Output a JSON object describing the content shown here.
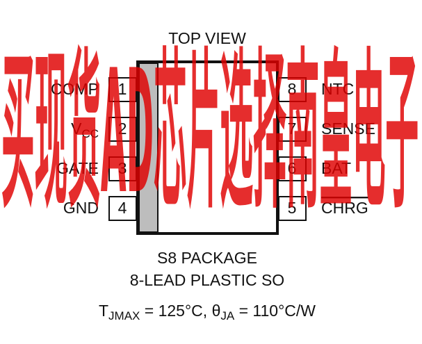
{
  "title": "TOP VIEW",
  "pins_left": [
    {
      "number": "1",
      "label": "COMP"
    },
    {
      "number": "2",
      "label": {
        "main": "V",
        "sub": "CC"
      }
    },
    {
      "number": "3",
      "label": "GATE"
    },
    {
      "number": "4",
      "label": "GND"
    }
  ],
  "pins_right": [
    {
      "number": "8",
      "label": "NTC"
    },
    {
      "number": "7",
      "label": "SENSE"
    },
    {
      "number": "6",
      "label": "BAT"
    },
    {
      "number": "5",
      "label": "CHRG"
    }
  ],
  "package": [
    "S8 PACKAGE",
    "8-LEAD PLASTIC SO"
  ],
  "thermal": [
    "T",
    "JMAX",
    " = 125°C, ",
    "θ",
    "JA",
    " = 110°C/W"
  ],
  "watermark": "买现货AD芯片选择南皇电子"
}
